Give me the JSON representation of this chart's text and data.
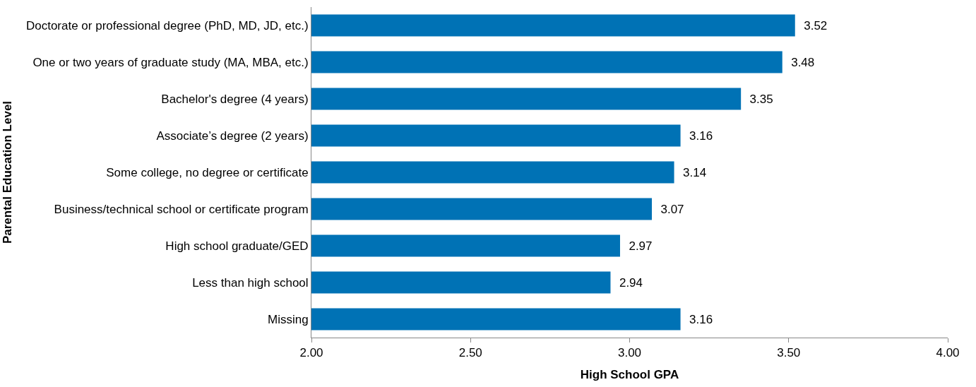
{
  "chart_data": {
    "type": "bar",
    "orientation": "horizontal",
    "xlabel": "High School GPA",
    "ylabel": "Parental Education Level",
    "categories": [
      "Doctorate or professional degree (PhD, MD, JD, etc.)",
      "One or two years of graduate study (MA, MBA, etc.)",
      "Bachelor's degree (4 years)",
      "Associate’s degree (2 years)",
      "Some college, no degree or certificate",
      "Business/technical school or certificate program",
      "High school graduate/GED",
      "Less than high school",
      "Missing"
    ],
    "values": [
      3.52,
      3.48,
      3.35,
      3.16,
      3.14,
      3.07,
      2.97,
      2.94,
      3.16
    ],
    "color": "#0072b5",
    "xlim": [
      2,
      4
    ],
    "xticks": [
      {
        "value": 2,
        "label": "2.00"
      },
      {
        "value": 2.5,
        "label": "2.50"
      },
      {
        "value": 3,
        "label": "3.00"
      },
      {
        "value": 3.5,
        "label": "3.50"
      },
      {
        "value": 4,
        "label": "4.00"
      }
    ],
    "data_labels": true
  }
}
